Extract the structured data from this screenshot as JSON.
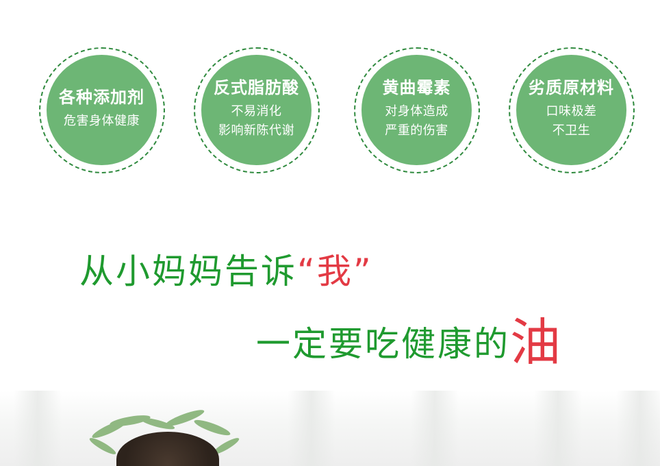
{
  "circles": [
    {
      "title": "各种添加剂",
      "lines": [
        "危害身体健康"
      ]
    },
    {
      "title": "反式脂肪酸",
      "lines": [
        "不易消化",
        "影响新陈代谢"
      ]
    },
    {
      "title": "黄曲霉素",
      "lines": [
        "对身体造成",
        "严重的伤害"
      ]
    },
    {
      "title": "劣质原材料",
      "lines": [
        "口味极差",
        "不卫生"
      ]
    }
  ],
  "slogan": {
    "line1_text": "从小妈妈告诉",
    "line1_quote": "“我”",
    "line2_text": "一定要吃健康的",
    "line2_highlight": "油"
  },
  "colors": {
    "circle_fill": "#6db675",
    "circle_border": "#2f8a3e",
    "slogan_green": "#1f9a2f",
    "slogan_red": "#e33a44"
  }
}
